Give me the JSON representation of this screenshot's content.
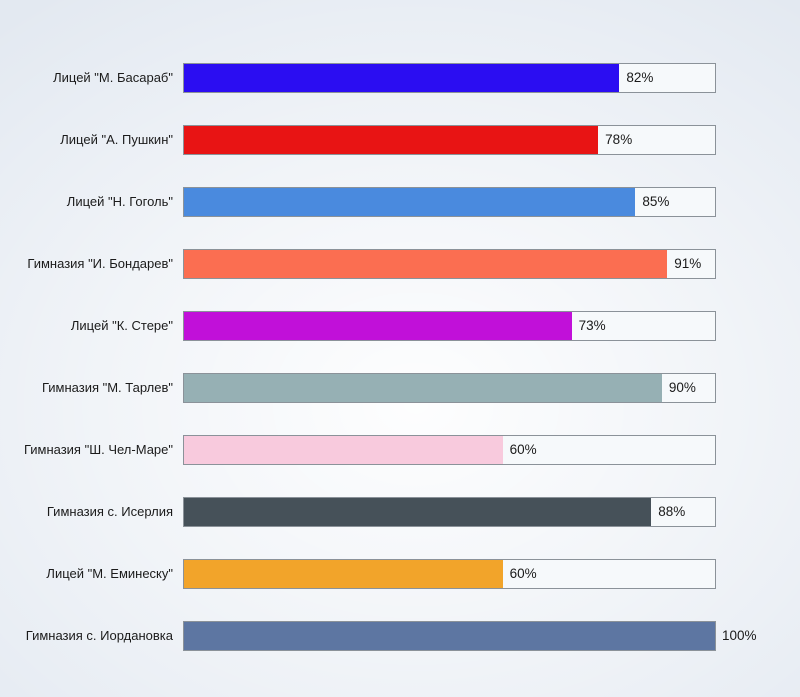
{
  "chart_data": {
    "type": "bar",
    "orientation": "horizontal",
    "title": "",
    "xlabel": "",
    "ylabel": "",
    "xlim": [
      0,
      100
    ],
    "grid": false,
    "legend": false,
    "categories": [
      "Лицей \"М. Басараб\"",
      "Лицей \"А. Пушкин\"",
      "Лицей \"Н. Гоголь\"",
      "Гимназия \"И. Бондарев\"",
      "Лицей \"К. Стере\"",
      "Гимназия \"М. Тарлев\"",
      "Гимназия \"Ш. Чел-Маре\"",
      "Гимназия с. Исерлия",
      "Лицей \"М. Еминеску\"",
      "Гимназия с. Иордановка"
    ],
    "values": [
      82,
      78,
      85,
      91,
      73,
      90,
      60,
      88,
      60,
      100
    ],
    "value_labels": [
      "82%",
      "78%",
      "85%",
      "91%",
      "73%",
      "90%",
      "60%",
      "88%",
      "60%",
      "100%"
    ],
    "bar_colors": [
      "#2b0df2",
      "#e81414",
      "#4a8ade",
      "#fb6e51",
      "#c110d9",
      "#96b0b4",
      "#f8cadd",
      "#465159",
      "#f2a42a",
      "#5d76a2"
    ]
  },
  "styles": {
    "background": "#e3e9f1",
    "track_background": "#f6f9fb",
    "track_border": "#8b9299",
    "text_color": "#1b1b1b"
  }
}
